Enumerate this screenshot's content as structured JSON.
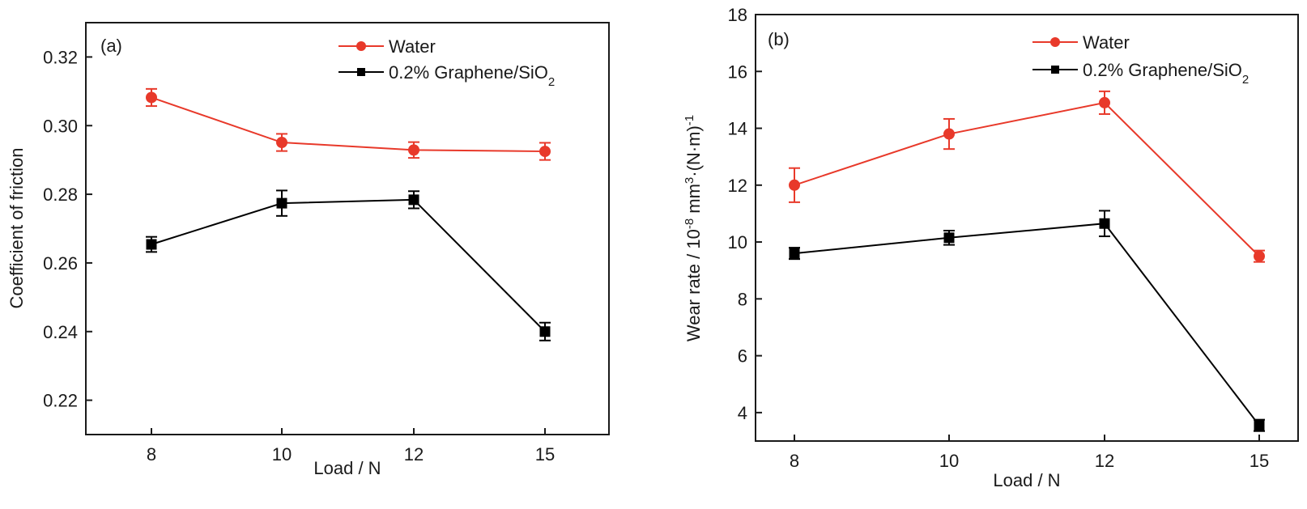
{
  "chart_data": [
    {
      "type": "line",
      "panel_label": "(a)",
      "title": "",
      "xlabel": "Load / N",
      "ylabel": "Coefficient of friction",
      "categories": [
        "8",
        "10",
        "12",
        "15"
      ],
      "ylim": [
        0.21,
        0.33
      ],
      "yticks": [
        0.22,
        0.24,
        0.26,
        0.28,
        0.3,
        0.32
      ],
      "ytick_labels": [
        "0.22",
        "0.24",
        "0.26",
        "0.28",
        "0.30",
        "0.32"
      ],
      "grid": false,
      "legend_position": "top-right",
      "series": [
        {
          "name": "Water",
          "name_main": "Water",
          "name_sub": "",
          "color": "#e8392a",
          "marker": "circle",
          "values": [
            0.3082,
            0.2951,
            0.2929,
            0.2925
          ],
          "errors": [
            0.0025,
            0.0025,
            0.0023,
            0.0025
          ]
        },
        {
          "name": "0.2% Graphene/SiO2",
          "name_main": "0.2% Graphene/SiO",
          "name_sub": "2",
          "color": "#000000",
          "marker": "square",
          "values": [
            0.2654,
            0.2774,
            0.2784,
            0.24
          ],
          "errors": [
            0.0022,
            0.0037,
            0.0025,
            0.0026
          ]
        }
      ]
    },
    {
      "type": "line",
      "panel_label": "(b)",
      "title": "",
      "xlabel": "Load / N",
      "ylabel_parts": [
        "Wear rate / 10",
        "-8",
        " mm",
        "3",
        "·(N·m)",
        "-1"
      ],
      "ylabel": "Wear rate / 10^-8 mm^3·(N·m)^-1",
      "categories": [
        "8",
        "10",
        "12",
        "15"
      ],
      "ylim": [
        3,
        18
      ],
      "yticks": [
        4,
        6,
        8,
        10,
        12,
        14,
        16,
        18
      ],
      "ytick_labels": [
        "4",
        "6",
        "8",
        "10",
        "12",
        "14",
        "16",
        "18"
      ],
      "grid": false,
      "legend_position": "top-right",
      "series": [
        {
          "name": "Water",
          "name_main": "Water",
          "name_sub": "",
          "color": "#e8392a",
          "marker": "circle",
          "values": [
            12.0,
            13.8,
            14.9,
            9.5
          ],
          "errors": [
            0.6,
            0.53,
            0.4,
            0.2
          ]
        },
        {
          "name": "0.2% Graphene/SiO2",
          "name_main": "0.2% Graphene/SiO",
          "name_sub": "2",
          "color": "#000000",
          "marker": "square",
          "values": [
            9.6,
            10.15,
            10.65,
            3.55
          ],
          "errors": [
            0.2,
            0.25,
            0.45,
            0.2
          ]
        }
      ]
    }
  ]
}
